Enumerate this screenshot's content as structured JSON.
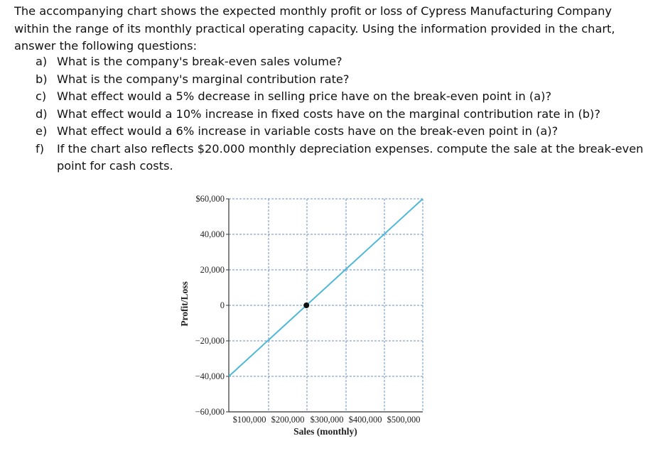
{
  "intro": "The accompanying chart shows the expected monthly profit or loss of Cypress Manufacturing Company within the range of its monthly practical operating capacity. Using the information provided in the chart, answer the following questions:",
  "questions": [
    {
      "mark": "a)",
      "text": "What is the company's break-even sales volume?"
    },
    {
      "mark": "b)",
      "text": "What is the company's marginal contribution rate?"
    },
    {
      "mark": "c)",
      "text": "What effect would a 5% decrease in selling price have on the break-even point in (a)?"
    },
    {
      "mark": "d)",
      "text": "What effect would a 10% increase in fixed costs have on the marginal contribution rate in (b)?"
    },
    {
      "mark": "e)",
      "text": "What effect would a 6% increase in variable costs have on the break-even point in (a)?"
    },
    {
      "mark": "f)",
      "text": "If the chart also reflects $20.000 monthly depreciation expenses. compute the sale at the break-even point for cash costs."
    }
  ],
  "chart_data": {
    "type": "line",
    "xlabel": "Sales (monthly)",
    "ylabel": "Profit/Loss",
    "x_ticks": [
      "$100,000",
      "$200,000",
      "$300,000",
      "$400,000",
      "$500,000"
    ],
    "y_ticks": [
      "$60,000",
      "40,000",
      "20,000",
      "0",
      "−20,000",
      "−40,000",
      "−60,000"
    ],
    "xlim": [
      0,
      500000
    ],
    "ylim": [
      -60000,
      60000
    ],
    "grid": true,
    "series": [
      {
        "x": [
          0,
          500000
        ],
        "y": [
          -40000,
          60000
        ],
        "color": "#4fb8d8"
      }
    ],
    "markers": [
      {
        "x": 200000,
        "y": 0,
        "color": "#111111"
      }
    ]
  }
}
